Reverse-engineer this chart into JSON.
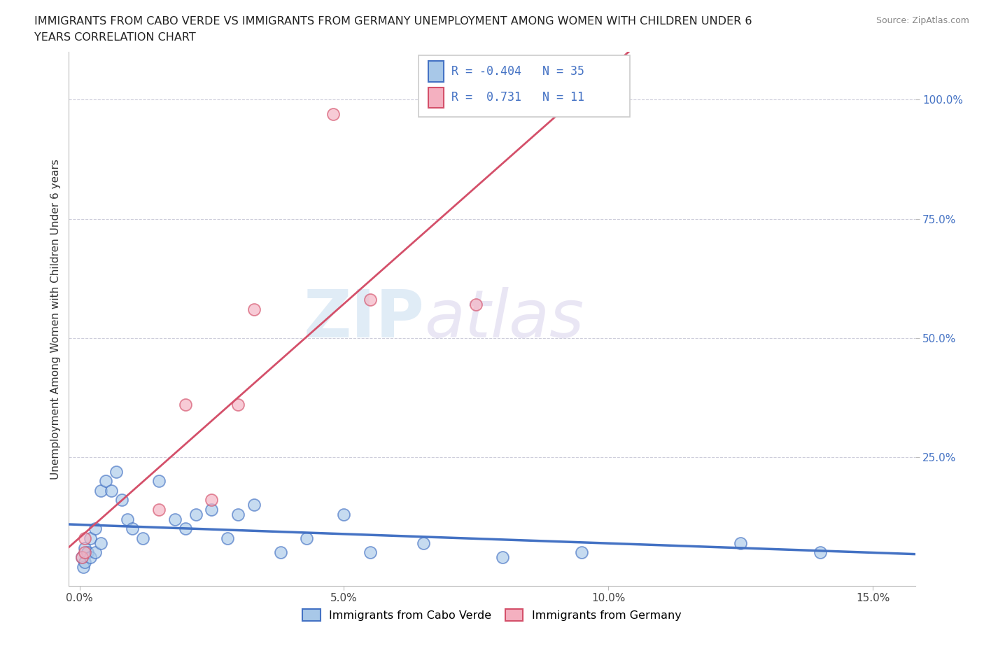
{
  "title_line1": "IMMIGRANTS FROM CABO VERDE VS IMMIGRANTS FROM GERMANY UNEMPLOYMENT AMONG WOMEN WITH CHILDREN UNDER 6",
  "title_line2": "YEARS CORRELATION CHART",
  "source": "Source: ZipAtlas.com",
  "ylabel": "Unemployment Among Women with Children Under 6 years",
  "x_ticks": [
    0.0,
    0.05,
    0.1,
    0.15
  ],
  "x_tick_labels": [
    "0.0%",
    "5.0%",
    "10.0%",
    "15.0%"
  ],
  "y_ticks": [
    0.25,
    0.5,
    0.75,
    1.0
  ],
  "y_tick_labels": [
    "25.0%",
    "50.0%",
    "75.0%",
    "100.0%"
  ],
  "xlim": [
    -0.002,
    0.158
  ],
  "ylim": [
    -0.02,
    1.1
  ],
  "cabo_verde_R": -0.404,
  "cabo_verde_N": 35,
  "germany_R": 0.731,
  "germany_N": 11,
  "cabo_verde_color": "#a8c8e8",
  "germany_color": "#f4b0c0",
  "cabo_verde_line_color": "#4472c4",
  "germany_line_color": "#d4506a",
  "legend_label_cabo_verde": "Immigrants from Cabo Verde",
  "legend_label_germany": "Immigrants from Germany",
  "cabo_verde_x": [
    0.0005,
    0.0007,
    0.001,
    0.001,
    0.0015,
    0.002,
    0.002,
    0.003,
    0.003,
    0.004,
    0.004,
    0.005,
    0.006,
    0.007,
    0.008,
    0.009,
    0.01,
    0.012,
    0.015,
    0.018,
    0.02,
    0.022,
    0.025,
    0.028,
    0.03,
    0.033,
    0.038,
    0.043,
    0.05,
    0.055,
    0.065,
    0.08,
    0.095,
    0.125,
    0.14
  ],
  "cabo_verde_y": [
    0.04,
    0.02,
    0.06,
    0.03,
    0.05,
    0.08,
    0.04,
    0.1,
    0.05,
    0.18,
    0.07,
    0.2,
    0.18,
    0.22,
    0.16,
    0.12,
    0.1,
    0.08,
    0.2,
    0.12,
    0.1,
    0.13,
    0.14,
    0.08,
    0.13,
    0.15,
    0.05,
    0.08,
    0.13,
    0.05,
    0.07,
    0.04,
    0.05,
    0.07,
    0.05
  ],
  "germany_x": [
    0.0005,
    0.001,
    0.001,
    0.015,
    0.02,
    0.025,
    0.03,
    0.033,
    0.048,
    0.055,
    0.075
  ],
  "germany_y": [
    0.04,
    0.08,
    0.05,
    0.14,
    0.36,
    0.16,
    0.36,
    0.56,
    0.97,
    0.58,
    0.57
  ],
  "watermark_zip": "ZIP",
  "watermark_atlas": "atlas",
  "background_color": "#ffffff",
  "grid_color": "#c8c8d8"
}
